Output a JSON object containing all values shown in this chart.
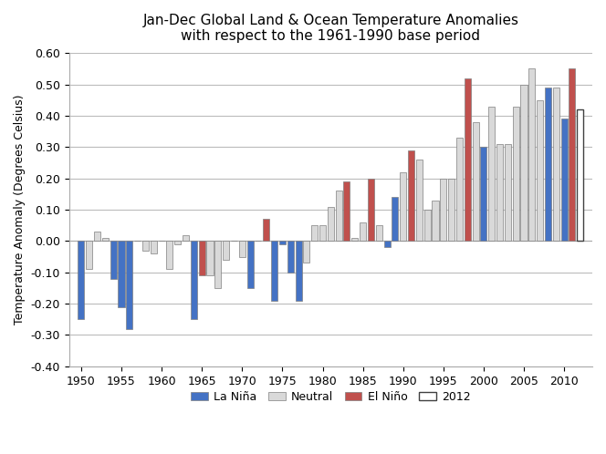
{
  "title_line1": "Jan-Dec Global Land & Ocean Temperature Anomalies",
  "title_line2": "with respect to the 1961-1990 base period",
  "ylabel": "Temperature Anomaly (Degrees Celsius)",
  "ylim": [
    -0.4,
    0.6
  ],
  "yticks": [
    -0.4,
    -0.3,
    -0.2,
    -0.1,
    0.0,
    0.1,
    0.2,
    0.3,
    0.4,
    0.5,
    0.6
  ],
  "legend_labels": [
    "La Niña",
    "Neutral",
    "El Niño",
    "2012"
  ],
  "colors": {
    "lanina": "#4472C4",
    "neutral": "#D9D9D9",
    "elnino": "#C0504D",
    "year2012": "#FFFFFF",
    "bar_edge": "#808080",
    "bar_edge_2012": "#404040"
  },
  "data": [
    {
      "year": 1950,
      "value": -0.25,
      "type": "lanina"
    },
    {
      "year": 1951,
      "value": -0.09,
      "type": "neutral"
    },
    {
      "year": 1952,
      "value": 0.03,
      "type": "neutral"
    },
    {
      "year": 1953,
      "value": 0.01,
      "type": "neutral"
    },
    {
      "year": 1954,
      "value": -0.12,
      "type": "lanina"
    },
    {
      "year": 1955,
      "value": -0.21,
      "type": "lanina"
    },
    {
      "year": 1956,
      "value": -0.28,
      "type": "lanina"
    },
    {
      "year": 1957,
      "value": 0.0,
      "type": "neutral"
    },
    {
      "year": 1958,
      "value": -0.03,
      "type": "neutral"
    },
    {
      "year": 1959,
      "value": -0.04,
      "type": "neutral"
    },
    {
      "year": 1960,
      "value": 0.0,
      "type": "neutral"
    },
    {
      "year": 1961,
      "value": -0.09,
      "type": "neutral"
    },
    {
      "year": 1962,
      "value": -0.01,
      "type": "neutral"
    },
    {
      "year": 1963,
      "value": 0.02,
      "type": "neutral"
    },
    {
      "year": 1964,
      "value": -0.25,
      "type": "lanina"
    },
    {
      "year": 1965,
      "value": -0.11,
      "type": "elnino"
    },
    {
      "year": 1966,
      "value": -0.11,
      "type": "neutral"
    },
    {
      "year": 1967,
      "value": -0.15,
      "type": "neutral"
    },
    {
      "year": 1968,
      "value": -0.06,
      "type": "neutral"
    },
    {
      "year": 1969,
      "value": 0.0,
      "type": "elnino"
    },
    {
      "year": 1970,
      "value": -0.05,
      "type": "neutral"
    },
    {
      "year": 1971,
      "value": -0.15,
      "type": "lanina"
    },
    {
      "year": 1972,
      "value": -0.0,
      "type": "elnino"
    },
    {
      "year": 1973,
      "value": 0.07,
      "type": "elnino"
    },
    {
      "year": 1974,
      "value": -0.19,
      "type": "lanina"
    },
    {
      "year": 1975,
      "value": -0.01,
      "type": "lanina"
    },
    {
      "year": 1976,
      "value": -0.1,
      "type": "lanina"
    },
    {
      "year": 1977,
      "value": -0.19,
      "type": "lanina"
    },
    {
      "year": 1978,
      "value": -0.07,
      "type": "neutral"
    },
    {
      "year": 1979,
      "value": 0.05,
      "type": "neutral"
    },
    {
      "year": 1980,
      "value": 0.05,
      "type": "neutral"
    },
    {
      "year": 1981,
      "value": 0.11,
      "type": "neutral"
    },
    {
      "year": 1982,
      "value": 0.16,
      "type": "neutral"
    },
    {
      "year": 1983,
      "value": 0.19,
      "type": "elnino"
    },
    {
      "year": 1984,
      "value": 0.01,
      "type": "neutral"
    },
    {
      "year": 1985,
      "value": 0.06,
      "type": "neutral"
    },
    {
      "year": 1986,
      "value": 0.2,
      "type": "elnino"
    },
    {
      "year": 1987,
      "value": 0.05,
      "type": "neutral"
    },
    {
      "year": 1988,
      "value": -0.02,
      "type": "lanina"
    },
    {
      "year": 1989,
      "value": 0.14,
      "type": "lanina"
    },
    {
      "year": 1990,
      "value": 0.22,
      "type": "neutral"
    },
    {
      "year": 1991,
      "value": 0.29,
      "type": "elnino"
    },
    {
      "year": 1992,
      "value": 0.26,
      "type": "neutral"
    },
    {
      "year": 1993,
      "value": 0.1,
      "type": "neutral"
    },
    {
      "year": 1994,
      "value": 0.13,
      "type": "neutral"
    },
    {
      "year": 1995,
      "value": 0.2,
      "type": "neutral"
    },
    {
      "year": 1996,
      "value": 0.2,
      "type": "neutral"
    },
    {
      "year": 1997,
      "value": 0.33,
      "type": "neutral"
    },
    {
      "year": 1998,
      "value": 0.52,
      "type": "elnino"
    },
    {
      "year": 1999,
      "value": 0.38,
      "type": "neutral"
    },
    {
      "year": 2000,
      "value": 0.3,
      "type": "lanina"
    },
    {
      "year": 2001,
      "value": 0.43,
      "type": "neutral"
    },
    {
      "year": 2002,
      "value": 0.31,
      "type": "neutral"
    },
    {
      "year": 2003,
      "value": 0.31,
      "type": "neutral"
    },
    {
      "year": 2004,
      "value": 0.43,
      "type": "neutral"
    },
    {
      "year": 2005,
      "value": 0.5,
      "type": "neutral"
    },
    {
      "year": 2006,
      "value": 0.55,
      "type": "neutral"
    },
    {
      "year": 2007,
      "value": 0.45,
      "type": "neutral"
    },
    {
      "year": 2008,
      "value": 0.49,
      "type": "lanina"
    },
    {
      "year": 2009,
      "value": 0.49,
      "type": "neutral"
    },
    {
      "year": 2010,
      "value": 0.39,
      "type": "lanina"
    },
    {
      "year": 2011,
      "value": 0.55,
      "type": "elnino"
    },
    {
      "year": 2012,
      "value": 0.42,
      "type": "year2012"
    }
  ],
  "figsize": [
    6.64,
    4.98
  ],
  "dpi": 100
}
